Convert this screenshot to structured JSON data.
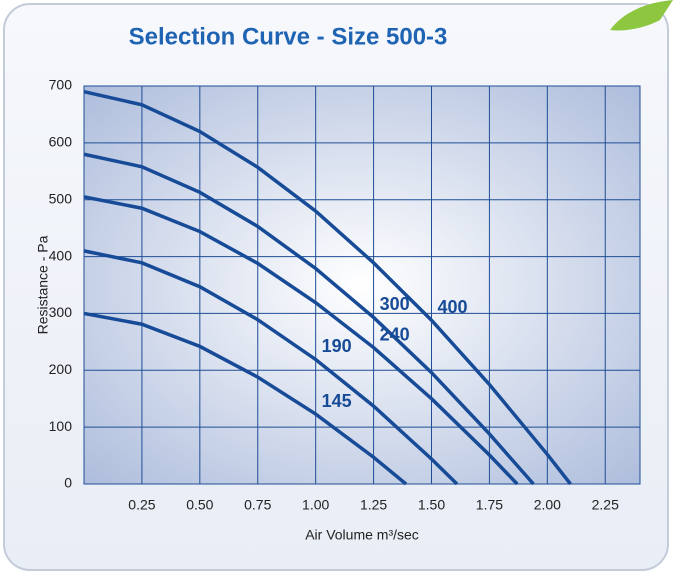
{
  "chart_data": {
    "type": "line",
    "title": "Selection Curve - Size 500-3",
    "x_label": "Air Volume m³/sec",
    "y_label": "Resistance - Pa",
    "xlim": [
      0,
      2.4
    ],
    "ylim": [
      0,
      700
    ],
    "xticks": [
      0.25,
      {
        "value": 0.5,
        "label": "0.50"
      },
      0.75,
      {
        "value": 1,
        "label": "1.00"
      },
      1.25,
      {
        "value": 1.5,
        "label": "1.50"
      },
      1.75,
      {
        "value": 2,
        "label": "2.00"
      },
      2.25
    ],
    "yticks": [
      0,
      100,
      200,
      300,
      400,
      500,
      600,
      700
    ],
    "grid": true,
    "series": [
      {
        "name": "400",
        "color": "#174b97",
        "x": [
          0,
          0.25,
          0.5,
          0.75,
          1,
          1.25,
          1.5,
          1.75,
          2,
          2.1
        ],
        "values": [
          690,
          667,
          620,
          557,
          480,
          389,
          288,
          175,
          52,
          0
        ]
      },
      {
        "name": "300",
        "color": "#174b97",
        "x": [
          0,
          0.25,
          0.5,
          0.75,
          1,
          1.25,
          1.5,
          1.75,
          1.94
        ],
        "values": [
          580,
          558,
          513,
          453,
          379,
          293,
          196,
          88,
          0
        ]
      },
      {
        "name": "240",
        "color": "#174b97",
        "x": [
          0,
          0.25,
          0.5,
          0.75,
          1,
          1.25,
          1.5,
          1.75,
          1.87
        ],
        "values": [
          505,
          485,
          444,
          388,
          319,
          240,
          150,
          51,
          0
        ]
      },
      {
        "name": "190",
        "color": "#174b97",
        "x": [
          0,
          0.25,
          0.5,
          0.75,
          1,
          1.25,
          1.5,
          1.61
        ],
        "values": [
          410,
          389,
          347,
          289,
          219,
          137,
          44,
          0
        ]
      },
      {
        "name": "145",
        "color": "#174b97",
        "x": [
          0,
          0.25,
          0.5,
          0.75,
          1,
          1.25,
          1.39
        ],
        "values": [
          300,
          281,
          242,
          188,
          123,
          47,
          0
        ]
      }
    ]
  }
}
